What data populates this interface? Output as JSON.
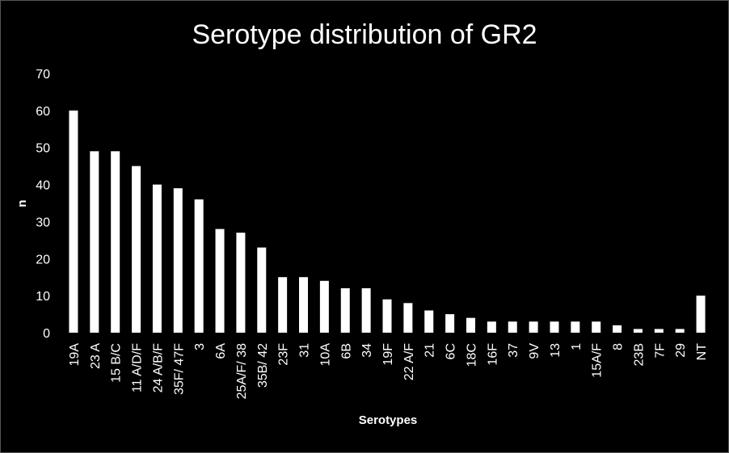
{
  "chart_data": {
    "type": "bar",
    "title": "Serotype distribution of GR2",
    "xlabel": "Serotypes",
    "ylabel": "n",
    "ylim": [
      0,
      70
    ],
    "yticks": [
      0,
      10,
      20,
      30,
      40,
      50,
      60,
      70
    ],
    "grid": false,
    "legend": "none",
    "bar_color": "#ffffff",
    "background_color": "#000000",
    "categories": [
      "19A",
      "23 A",
      "15 B/C",
      "11 A/D/F",
      "24 A/B/F",
      "35F/ 47F",
      "3",
      "6A",
      "25A/F/ 38",
      "35B/ 42",
      "23F",
      "31",
      "10A",
      "6B",
      "34",
      "19F",
      "22 A/F",
      "21",
      "6C",
      "18C",
      "16F",
      "37",
      "9V",
      "13",
      "1",
      "15A/F",
      "8",
      "23B",
      "7F",
      "29",
      "NT"
    ],
    "values": [
      60,
      49,
      49,
      45,
      40,
      39,
      36,
      28,
      27,
      23,
      15,
      15,
      14,
      12,
      12,
      9,
      8,
      6,
      5,
      4,
      3,
      3,
      3,
      3,
      3,
      3,
      2,
      1,
      1,
      1,
      10
    ]
  }
}
